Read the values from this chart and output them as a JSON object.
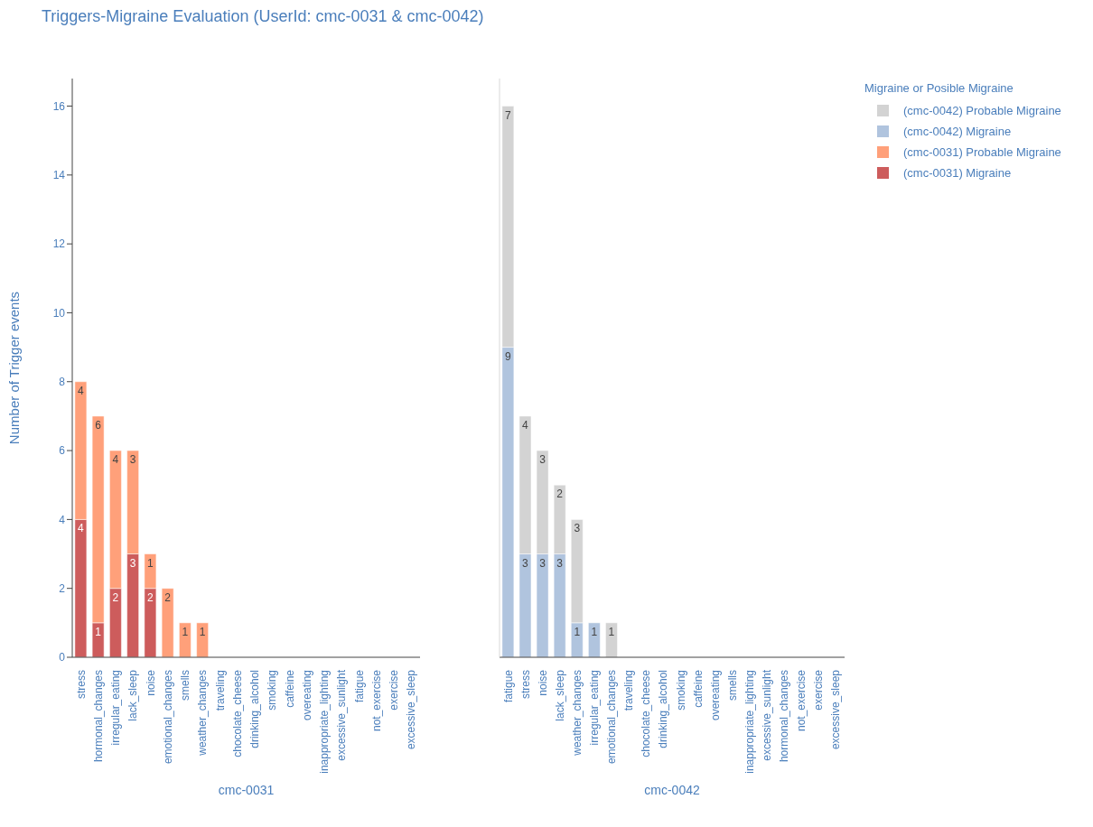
{
  "chart_data": [
    {
      "type": "bar",
      "title": "Triggers-Migraine Evaluation (UserId: cmc-0031 & cmc-0042)",
      "xlabel": "cmc-0031",
      "ylabel": "Number of Trigger events",
      "stacked": true,
      "legend": "top right",
      "tick_labels": true,
      "categories": [
        "stress",
        "hormonal_changes",
        "irregular_eating",
        "lack_sleep",
        "noise",
        "emotional_changes",
        "smells",
        "weather_changes",
        "traveling",
        "chocolate_cheese",
        "drinking_alcohol",
        "smoking",
        "caffeine",
        "overeating",
        "inappropriate_lighting",
        "excessive_sunlight",
        "fatigue",
        "not_exercise",
        "exercise",
        "excessive_sleep"
      ],
      "series": [
        {
          "name": "(cmc-0031) Migraine",
          "color": "#cd5c5c",
          "values": [
            4,
            1,
            2,
            3,
            2,
            0,
            0,
            0,
            0,
            0,
            0,
            0,
            0,
            0,
            0,
            0,
            0,
            0,
            0,
            0
          ],
          "value_labels": [
            "4",
            "1",
            "2",
            "3",
            "2",
            null,
            null,
            null,
            null,
            null,
            null,
            null,
            null,
            null,
            null,
            null,
            null,
            null,
            null,
            null
          ]
        },
        {
          "name": "(cmc-0031) Probable Migraine",
          "color": "#ffa07a",
          "values": [
            4,
            6,
            4,
            3,
            1,
            2,
            1,
            1,
            0,
            0,
            0,
            0,
            0,
            0,
            0,
            0,
            0,
            0,
            0,
            0
          ],
          "value_labels": [
            "4",
            "6",
            "4",
            "3",
            "1",
            "2",
            "1",
            "1",
            null,
            null,
            null,
            null,
            null,
            null,
            null,
            null,
            null,
            null,
            null,
            null
          ]
        }
      ],
      "ylim": [
        0,
        16.8
      ],
      "yticks": [
        0,
        2,
        4,
        6,
        8,
        10,
        12,
        14,
        16
      ]
    },
    {
      "type": "bar",
      "xlabel": "cmc-0042",
      "stacked": true,
      "legend": "top right",
      "legend_title": "Migraine or Posible Migraine",
      "tick_labels": "x",
      "categories": [
        "fatigue",
        "stress",
        "noise",
        "lack_sleep",
        "weather_changes",
        "irregular_eating",
        "emotional_changes",
        "traveling",
        "chocolate_cheese",
        "drinking_alcohol",
        "smoking",
        "caffeine",
        "overeating",
        "smells",
        "inappropriate_lighting",
        "excessive_sunlight",
        "hormonal_changes",
        "not_exercise",
        "exercise",
        "excessive_sleep"
      ],
      "series": [
        {
          "name": "(cmc-0042) Migraine",
          "color": "#b0c4de",
          "values": [
            9,
            3,
            3,
            3,
            1,
            1,
            0,
            0,
            0,
            0,
            0,
            0,
            0,
            0,
            0,
            0,
            0,
            0,
            0,
            0
          ],
          "value_labels": [
            "9",
            "3",
            "3",
            "3",
            "1",
            "1",
            null,
            null,
            null,
            null,
            null,
            null,
            null,
            null,
            null,
            null,
            null,
            null,
            null,
            null
          ]
        },
        {
          "name": "(cmc-0042) Probable Migraine",
          "color": "#d3d3d3",
          "values": [
            7,
            4,
            3,
            2,
            3,
            0,
            1,
            0,
            0,
            0,
            0,
            0,
            0,
            0,
            0,
            0,
            0,
            0,
            0,
            0
          ],
          "value_labels": [
            "7",
            "4",
            "3",
            "2",
            "3",
            null,
            "1",
            null,
            null,
            null,
            null,
            null,
            null,
            null,
            null,
            null,
            null,
            null,
            null,
            null
          ]
        }
      ],
      "ylim": [
        0,
        16.8
      ],
      "yticks": [
        0,
        2,
        4,
        6,
        8,
        10,
        12,
        14,
        16
      ]
    }
  ]
}
